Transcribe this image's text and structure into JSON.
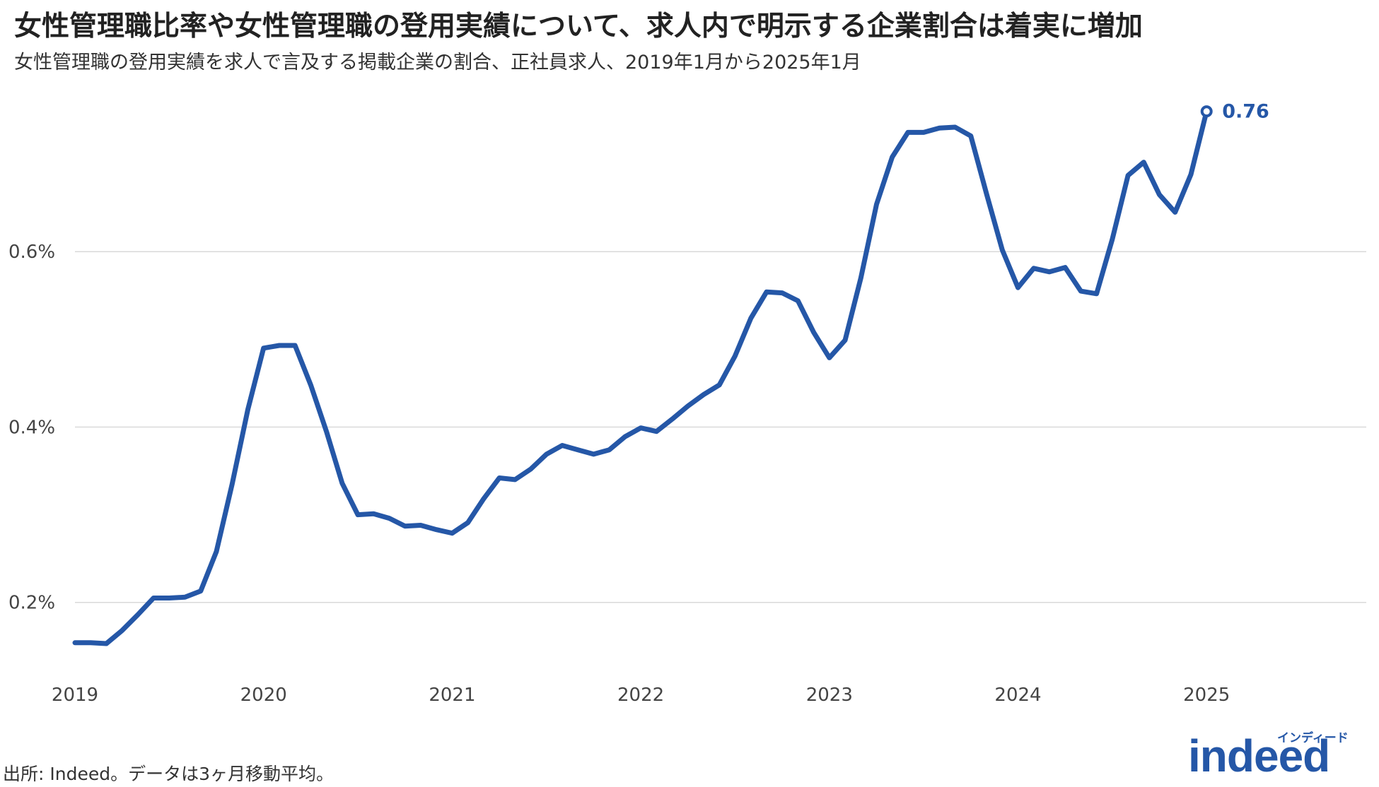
{
  "header": {
    "title": "女性管理職比率や女性管理職の登用実績について、求人内で明示する企業割合は着実に増加",
    "subtitle": "女性管理職の登用実績を求人で言及する掲載企業の割合、正社員求人、2019年1月から2025年1月"
  },
  "footer": {
    "source": "出所: Indeed。データは3ヶ月移動平均。",
    "logo_ja": "インディード",
    "logo_main": "indeed"
  },
  "colors": {
    "line": "#2557a7",
    "grid": "#d9d9d9",
    "tick_text": "#444444"
  },
  "chart_data": {
    "type": "line",
    "title": "女性管理職比率や女性管理職の登用実績について、求人内で明示する企業割合は着実に増加",
    "subtitle": "女性管理職の登用実績を求人で言及する掲載企業の割合、正社員求人、2019年1月から2025年1月",
    "x_ticks": [
      "2019",
      "2020",
      "2021",
      "2022",
      "2023",
      "2024",
      "2025"
    ],
    "y_ticks": [
      "0.2%",
      "0.4%",
      "0.6%"
    ],
    "y_tick_values": [
      0.2,
      0.4,
      0.6
    ],
    "ylim": [
      0.12,
      0.8
    ],
    "x_start": "2019-01",
    "x_end_tick": "2026-01",
    "grid": "horizontal",
    "end_label": "0.76",
    "series": [
      {
        "values": [
          0.154,
          0.154,
          0.153,
          0.168,
          0.186,
          0.205,
          0.205,
          0.206,
          0.213,
          0.258,
          0.335,
          0.42,
          0.49,
          0.493,
          0.493,
          0.448,
          0.395,
          0.336,
          0.3,
          0.301,
          0.296,
          0.287,
          0.288,
          0.283,
          0.279,
          0.291,
          0.318,
          0.342,
          0.34,
          0.352,
          0.369,
          0.379,
          0.374,
          0.369,
          0.374,
          0.389,
          0.399,
          0.395,
          0.409,
          0.424,
          0.437,
          0.448,
          0.481,
          0.524,
          0.554,
          0.553,
          0.544,
          0.508,
          0.479,
          0.499,
          0.57,
          0.654,
          0.708,
          0.736,
          0.736,
          0.741,
          0.742,
          0.732,
          0.666,
          0.602,
          0.559,
          0.581,
          0.577,
          0.582,
          0.555,
          0.552,
          0.614,
          0.687,
          0.702,
          0.665,
          0.645,
          0.688,
          0.76
        ]
      }
    ]
  }
}
